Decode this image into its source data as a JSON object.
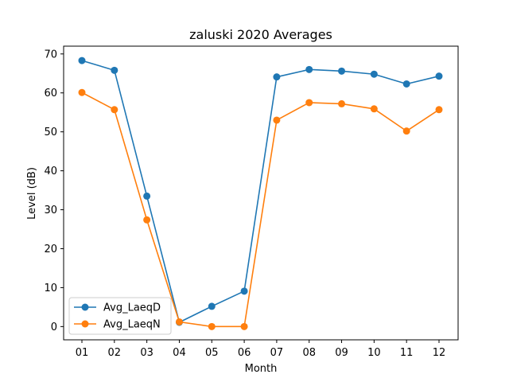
{
  "chart_data": {
    "type": "line",
    "title": "zaluski 2020 Averages",
    "xlabel": "Month",
    "ylabel": "Level (dB)",
    "categories": [
      "01",
      "02",
      "03",
      "04",
      "05",
      "06",
      "07",
      "08",
      "09",
      "10",
      "11",
      "12"
    ],
    "ylim": [
      -3.4,
      72.0
    ],
    "yticks": [
      0,
      10,
      20,
      30,
      40,
      50,
      60,
      70
    ],
    "grid": false,
    "legend": "lower-left",
    "series": [
      {
        "name": "Avg_LaeqD",
        "color": "#1f77b4",
        "marker": "circle",
        "values": [
          68.3,
          65.8,
          33.5,
          1.1,
          5.2,
          9.1,
          64.1,
          66.0,
          65.6,
          64.8,
          62.3,
          64.3
        ]
      },
      {
        "name": "Avg_LaeqN",
        "color": "#ff7f0e",
        "marker": "circle",
        "values": [
          60.1,
          55.7,
          27.4,
          1.2,
          0.0,
          0.0,
          53.0,
          57.5,
          57.2,
          55.9,
          50.2,
          55.7
        ]
      }
    ]
  }
}
